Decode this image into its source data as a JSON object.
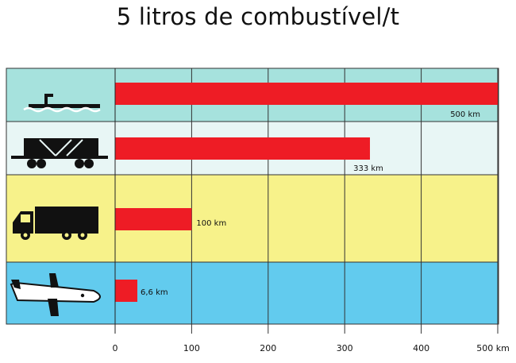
{
  "chart_data": {
    "type": "bar",
    "orientation": "horizontal",
    "title": "5 litros de combustível/t",
    "categories": [
      "navio",
      "trem",
      "caminhão",
      "avião"
    ],
    "category_icons": [
      "ship-icon",
      "train-icon",
      "truck-icon",
      "airplane-icon"
    ],
    "values": [
      500,
      333,
      100,
      6.6
    ],
    "data_labels": [
      "500 km",
      "333 km",
      "100 km",
      "6,6 km"
    ],
    "xlim": [
      0,
      500
    ],
    "x_ticks": [
      "0",
      "100",
      "200",
      "300",
      "400",
      "500 km"
    ],
    "grid": true,
    "bar_color": "#ee1c25",
    "row_colors": [
      "#a6e2dd",
      "#e8f6f5",
      "#f7f28a",
      "#62cbee"
    ]
  }
}
